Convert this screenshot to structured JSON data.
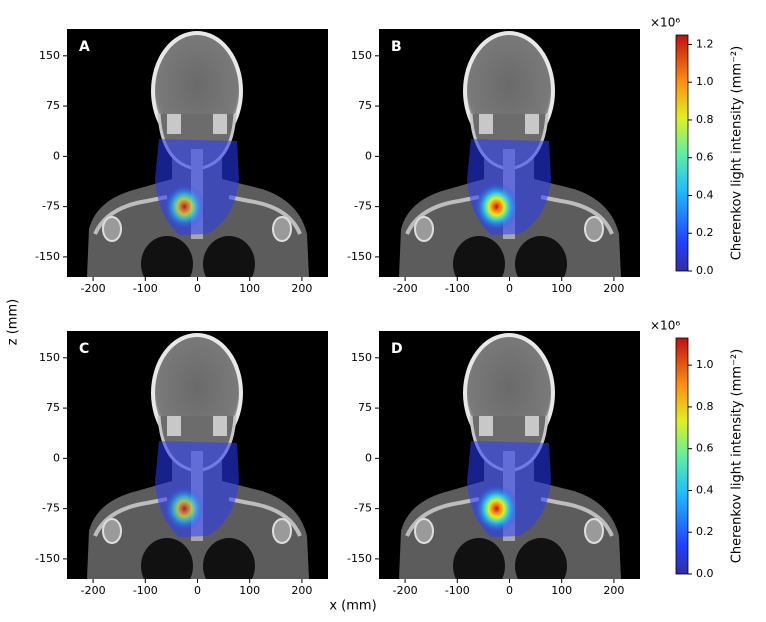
{
  "chart_data": {
    "type": "image",
    "xlabel": "x (mm)",
    "ylabel": "z (mm)",
    "xlim": [
      -250,
      250
    ],
    "ylim": [
      -180,
      190
    ],
    "xticks": [
      -200,
      -100,
      0,
      100,
      200
    ],
    "yticks": [
      -150,
      -75,
      0,
      75,
      150
    ],
    "panels": [
      {
        "label": "A"
      },
      {
        "label": "B"
      },
      {
        "label": "C"
      },
      {
        "label": "D"
      }
    ],
    "colorbars": [
      {
        "label": "Cherenkov light intensity (mm⁻²)",
        "scale": "×10⁶",
        "lim": [
          0,
          1.25
        ],
        "ticks": [
          {
            "value": 0,
            "label": "0.0"
          },
          {
            "value": 0.2,
            "label": "0.2"
          },
          {
            "value": 0.4,
            "label": "0.4"
          },
          {
            "value": 0.6,
            "label": "0.6"
          },
          {
            "value": 0.8,
            "label": "0.8"
          },
          {
            "value": 1,
            "label": "1.0"
          },
          {
            "value": 1.2,
            "label": "1.2"
          }
        ]
      },
      {
        "label": "Cherenkov light intensity (mm⁻²)",
        "scale": "×10⁶",
        "lim": [
          0,
          1.13
        ],
        "ticks": [
          {
            "value": 0,
            "label": "0.0"
          },
          {
            "value": 0.2,
            "label": "0.2"
          },
          {
            "value": 0.4,
            "label": "0.4"
          },
          {
            "value": 0.6,
            "label": "0.6"
          },
          {
            "value": 0.8,
            "label": "0.8"
          },
          {
            "value": 1,
            "label": "1.0"
          }
        ]
      }
    ],
    "colormap": "jet"
  }
}
